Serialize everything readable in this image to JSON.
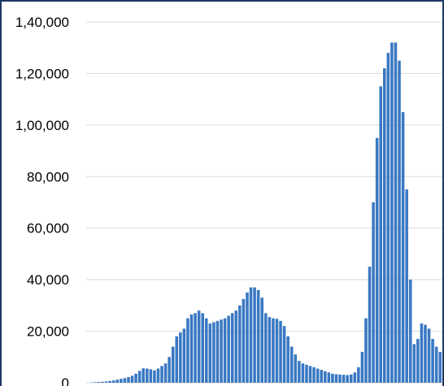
{
  "colors": {
    "bar": "#3a78c2",
    "grid": "#d9d9d9",
    "frame": "#1f3864"
  },
  "chart_data": {
    "type": "bar",
    "title": "",
    "xlabel": "",
    "ylabel": "",
    "ylim": [
      0,
      140000
    ],
    "yticks": [
      0,
      20000,
      40000,
      60000,
      80000,
      100000,
      120000,
      140000
    ],
    "ytick_labels": [
      "0",
      "20,000",
      "40,000",
      "60,000",
      "80,000",
      "1,00,000",
      "1,20,000",
      "1,40,000"
    ],
    "grid": "horizontal",
    "legend": "none",
    "values": [
      0,
      100,
      200,
      300,
      400,
      500,
      700,
      900,
      1200,
      1500,
      1800,
      2200,
      2700,
      3500,
      4600,
      5600,
      5500,
      5200,
      4800,
      5500,
      6500,
      7500,
      10000,
      14000,
      18000,
      19500,
      21000,
      25000,
      26500,
      27000,
      28000,
      27000,
      25000,
      23000,
      23500,
      24000,
      24500,
      25000,
      26000,
      27000,
      28000,
      30000,
      32500,
      35000,
      37000,
      37000,
      36000,
      33000,
      27000,
      25500,
      25000,
      24800,
      24000,
      22000,
      18000,
      14000,
      11000,
      8500,
      7500,
      7000,
      6500,
      6000,
      5500,
      5000,
      4500,
      4000,
      3500,
      3300,
      3200,
      3100,
      3000,
      3200,
      4000,
      6000,
      12000,
      25000,
      45000,
      70000,
      95000,
      115000,
      122000,
      128000,
      132000,
      132000,
      125000,
      105000,
      75000,
      40000,
      15000,
      17000,
      23000,
      22500,
      21000,
      17000,
      14000,
      12000
    ]
  }
}
